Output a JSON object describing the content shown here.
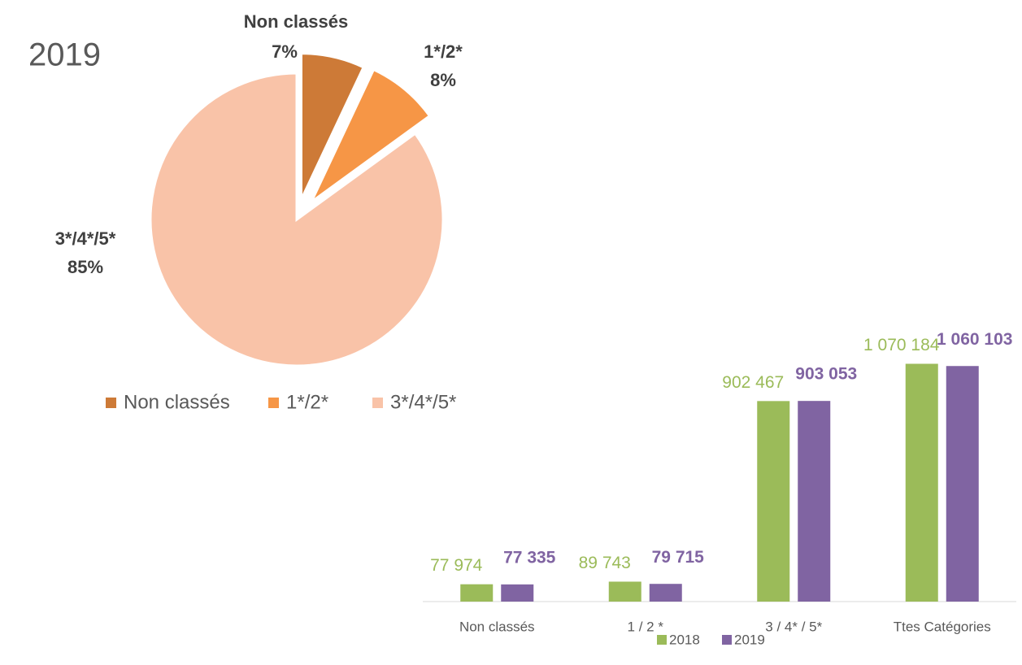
{
  "chart_data": [
    {
      "type": "pie",
      "title": "2019",
      "categories": [
        "Non classés",
        "1*/2*",
        "3*/4*/5*"
      ],
      "values": [
        7,
        8,
        85
      ],
      "value_labels": [
        "7%",
        "8%",
        "85%"
      ],
      "colors": [
        "#cd7a37",
        "#f69646",
        "#f9c3a8"
      ],
      "legend": "bottom"
    },
    {
      "type": "bar",
      "categories": [
        "Non classés",
        "1 / 2 *",
        "3 / 4* / 5*",
        "Ttes Catégories"
      ],
      "series": [
        {
          "name": "2018",
          "color": "#9bbb59",
          "values": [
            77974,
            89743,
            902467,
            1070184
          ],
          "value_labels": [
            "77 974",
            "89 743",
            "902 467",
            "1 070 184"
          ]
        },
        {
          "name": "2019",
          "color": "#8064a2",
          "values": [
            77335,
            79715,
            903053,
            1060103
          ],
          "value_labels": [
            "77 335",
            "79 715",
            "903 053",
            "1 060 103"
          ]
        }
      ],
      "ylim": [
        0,
        1200000
      ],
      "legend": "bottom"
    }
  ]
}
